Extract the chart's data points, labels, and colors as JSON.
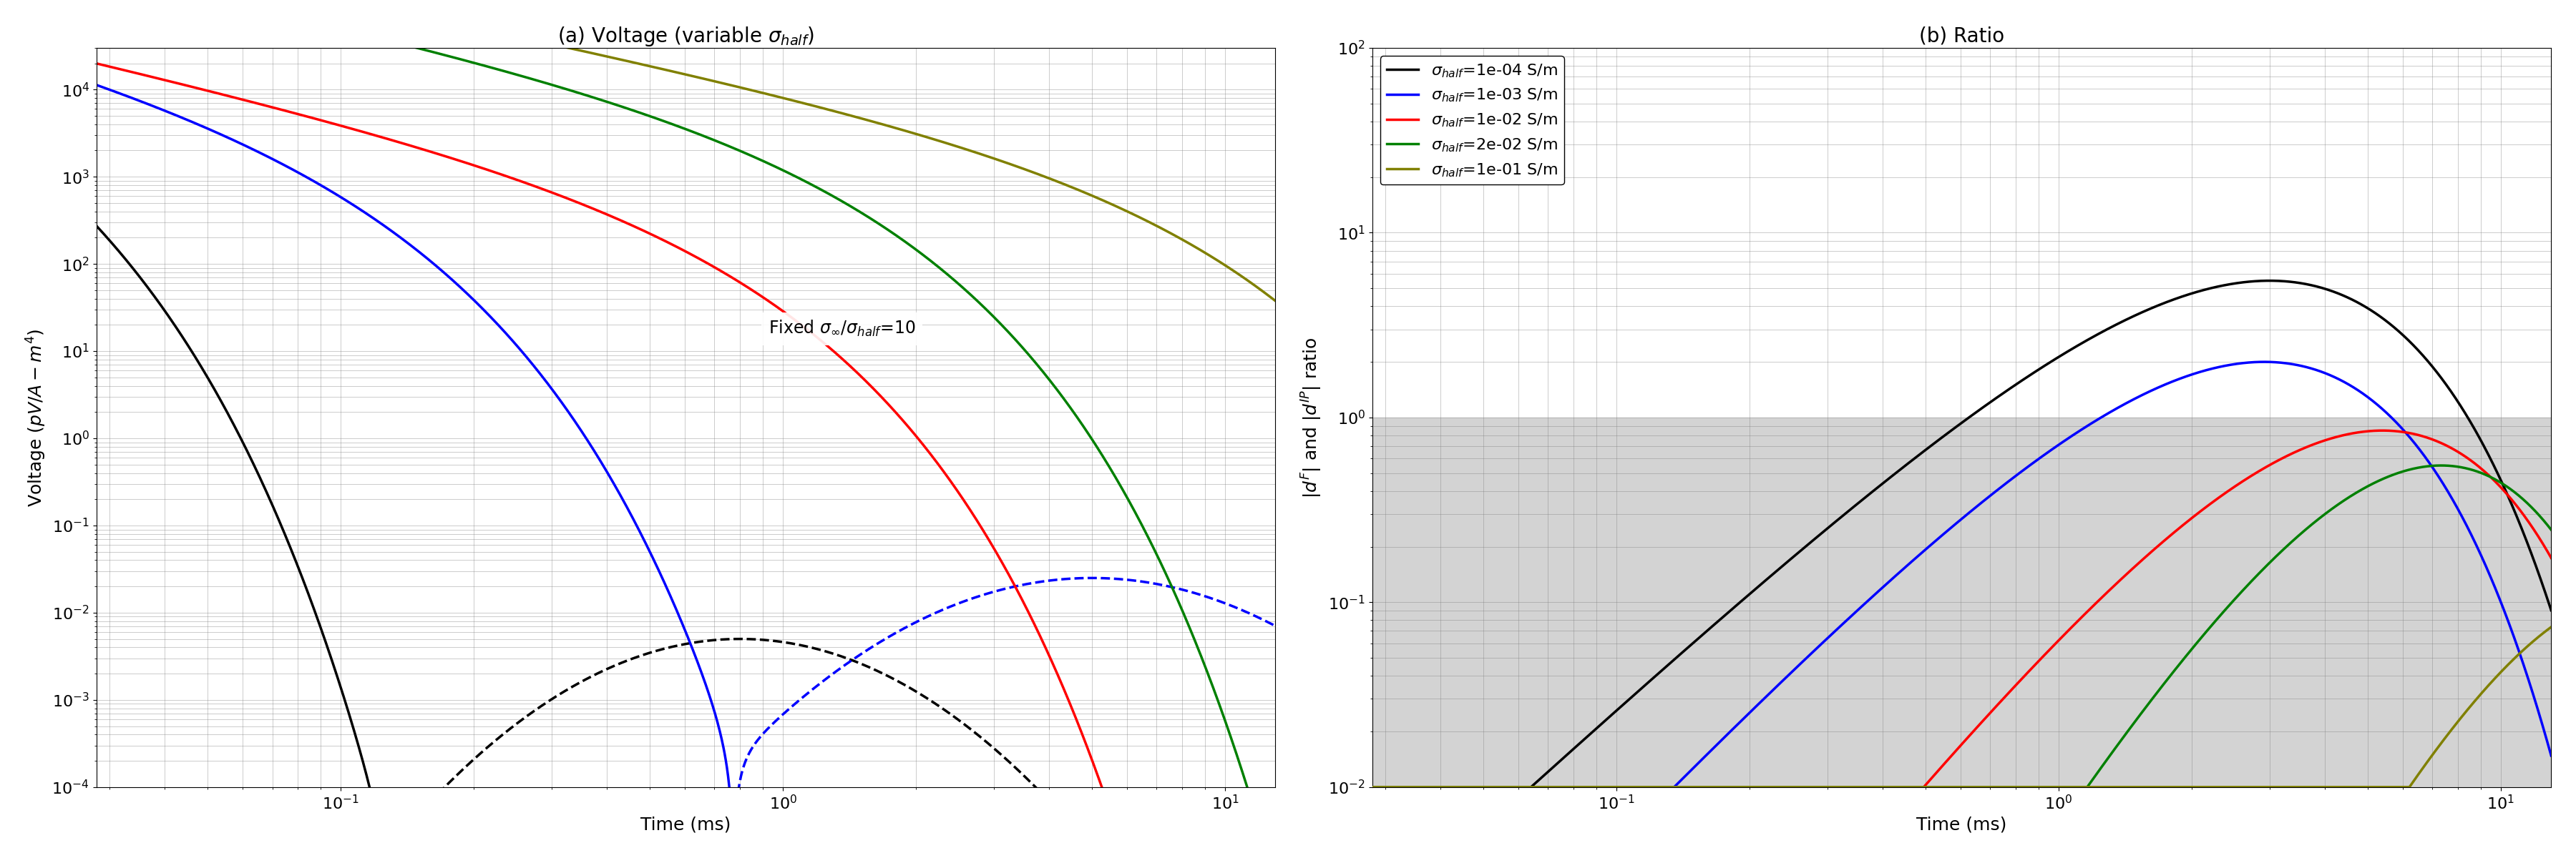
{
  "title_a": "(a) Voltage (variable $\\sigma_{half}$)",
  "title_b": "(b) Ratio",
  "xlabel": "Time (ms)",
  "ylabel_a": "Voltage ($pV/A-m^4$)",
  "ylabel_b": "$|d^F|$ and $|d^{IP}|$ ratio",
  "annotation_a": "Fixed $\\sigma_{\\infty}/\\sigma_{half}$=10",
  "xlim": [
    0.028,
    13
  ],
  "ylim_a": [
    0.0001,
    30000.0
  ],
  "ylim_b": [
    0.01,
    100.0
  ],
  "colors": [
    "black",
    "blue",
    "red",
    "green",
    "olive"
  ],
  "sigma_labels": [
    "$\\sigma_{half}$=1e-04 S/m",
    "$\\sigma_{half}$=1e-03 S/m",
    "$\\sigma_{half}$=1e-02 S/m",
    "$\\sigma_{half}$=2e-02 S/m",
    "$\\sigma_{half}$=1e-01 S/m"
  ],
  "lw": 2.5,
  "fs_title": 20,
  "fs_label": 18,
  "fs_tick": 16,
  "fs_legend": 16,
  "fs_annot": 17
}
